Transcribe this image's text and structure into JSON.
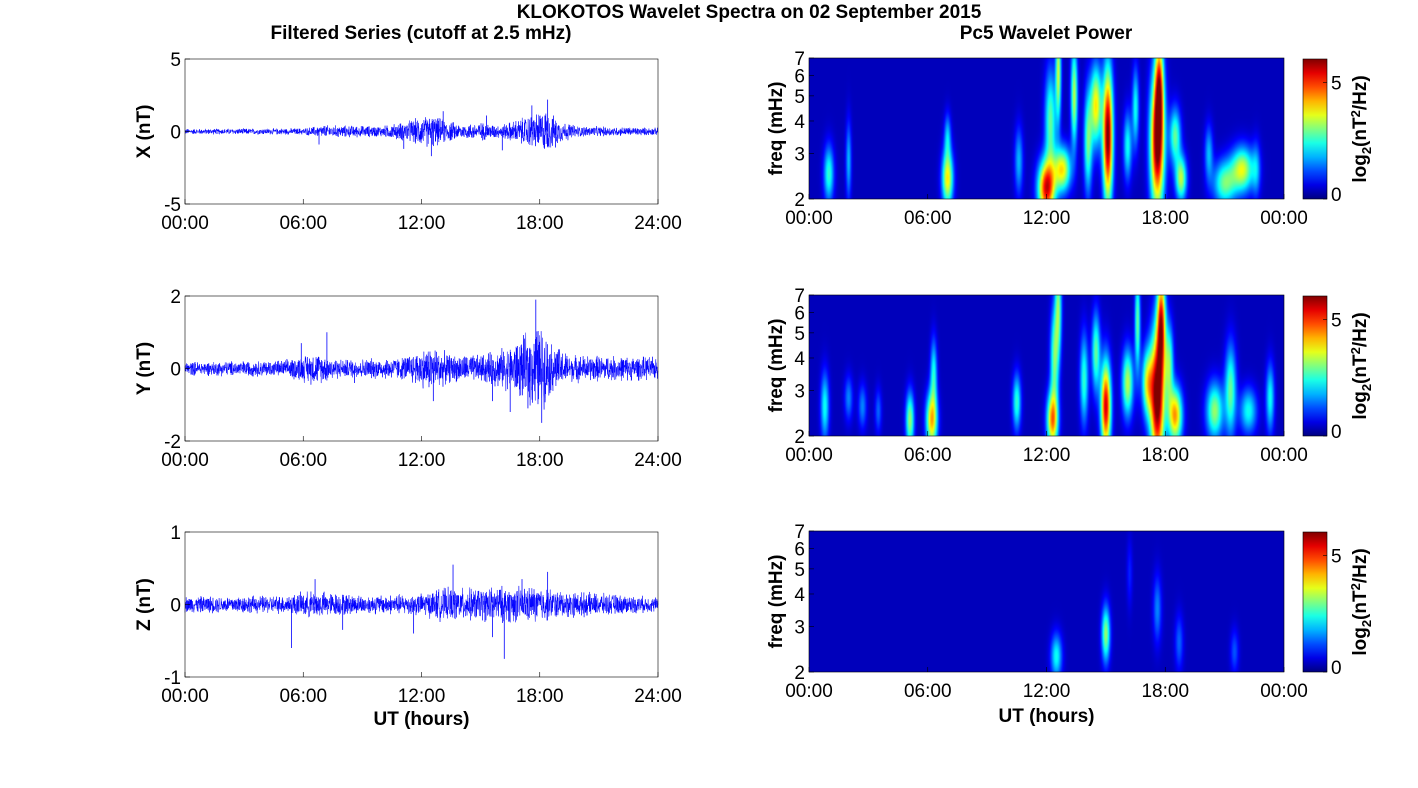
{
  "figure": {
    "title": "KLOKOTOS Wavelet Spectra on 02 September 2015",
    "left_title": "Filtered Series (cutoff at 2.5 mHz)",
    "right_title": "Pc5 Wavelet Power"
  },
  "colors": {
    "series": "#0000ff",
    "axis": "#000000",
    "background": "#ffffff"
  },
  "chart_data": [
    {
      "type": "line",
      "panel": "X",
      "ylabel": "X (nT)",
      "xlabel": "",
      "x_ticks": [
        "00:00",
        "06:00",
        "12:00",
        "18:00",
        "24:00"
      ],
      "xlim": [
        0,
        24
      ],
      "ylim": [
        -5,
        5
      ],
      "y_ticks": [
        "5",
        "0",
        "-5"
      ],
      "noise_envelope": [
        [
          0,
          0.15
        ],
        [
          6,
          0.18
        ],
        [
          7,
          0.35
        ],
        [
          10,
          0.3
        ],
        [
          11,
          0.5
        ],
        [
          12,
          0.8
        ],
        [
          12.5,
          0.9
        ],
        [
          13,
          0.7
        ],
        [
          14,
          0.4
        ],
        [
          15,
          0.5
        ],
        [
          16,
          0.35
        ],
        [
          17.5,
          0.9
        ],
        [
          18.3,
          1.2
        ],
        [
          19,
          0.6
        ],
        [
          20,
          0.3
        ],
        [
          24,
          0.2
        ]
      ],
      "spikes": [
        [
          6.8,
          -0.9
        ],
        [
          11.1,
          -1.2
        ],
        [
          12.5,
          -1.7
        ],
        [
          13.1,
          1.4
        ],
        [
          15.3,
          1.1
        ],
        [
          16.1,
          -1.3
        ],
        [
          17.6,
          1.8
        ],
        [
          18.4,
          2.2
        ],
        [
          18.8,
          -1.1
        ]
      ]
    },
    {
      "type": "line",
      "panel": "Y",
      "ylabel": "Y (nT)",
      "xlabel": "",
      "x_ticks": [
        "00:00",
        "06:00",
        "12:00",
        "18:00",
        "24:00"
      ],
      "xlim": [
        0,
        24
      ],
      "ylim": [
        -2,
        2
      ],
      "y_ticks": [
        "2",
        "0",
        "-2"
      ],
      "noise_envelope": [
        [
          0,
          0.15
        ],
        [
          5,
          0.18
        ],
        [
          6.5,
          0.35
        ],
        [
          8,
          0.2
        ],
        [
          11,
          0.25
        ],
        [
          12.5,
          0.5
        ],
        [
          13.5,
          0.3
        ],
        [
          15,
          0.3
        ],
        [
          16.5,
          0.5
        ],
        [
          17.5,
          0.8
        ],
        [
          18,
          1.0
        ],
        [
          18.5,
          0.6
        ],
        [
          19.5,
          0.3
        ],
        [
          24,
          0.25
        ]
      ],
      "spikes": [
        [
          5.9,
          0.7
        ],
        [
          7.2,
          1.0
        ],
        [
          8.6,
          -0.4
        ],
        [
          12.6,
          -0.9
        ],
        [
          15.6,
          -0.9
        ],
        [
          16.5,
          -1.2
        ],
        [
          17.8,
          1.9
        ],
        [
          18.1,
          -1.5
        ],
        [
          17.4,
          -1.1
        ]
      ]
    },
    {
      "type": "line",
      "panel": "Z",
      "ylabel": "Z (nT)",
      "xlabel": "UT (hours)",
      "x_ticks": [
        "00:00",
        "06:00",
        "12:00",
        "18:00",
        "24:00"
      ],
      "xlim": [
        0,
        24
      ],
      "ylim": [
        -1,
        1
      ],
      "y_ticks": [
        "1",
        "0",
        "-1"
      ],
      "noise_envelope": [
        [
          0,
          0.09
        ],
        [
          5,
          0.1
        ],
        [
          6.5,
          0.15
        ],
        [
          9,
          0.1
        ],
        [
          12,
          0.12
        ],
        [
          13,
          0.18
        ],
        [
          15,
          0.18
        ],
        [
          16,
          0.2
        ],
        [
          18,
          0.2
        ],
        [
          19,
          0.15
        ],
        [
          24,
          0.08
        ]
      ],
      "spikes": [
        [
          5.4,
          -0.6
        ],
        [
          6.6,
          0.35
        ],
        [
          8,
          -0.35
        ],
        [
          11.6,
          -0.4
        ],
        [
          13.6,
          0.55
        ],
        [
          15.6,
          -0.45
        ],
        [
          16.2,
          -0.75
        ],
        [
          18.4,
          0.45
        ],
        [
          17.1,
          0.35
        ]
      ]
    },
    {
      "type": "heatmap",
      "panel": "X",
      "ylabel": "freq (mHz)",
      "xlabel": "",
      "x_ticks": [
        "00:00",
        "06:00",
        "12:00",
        "18:00",
        "00:00"
      ],
      "y_ticks": [
        "2",
        "3",
        "4",
        "5",
        "6",
        "7"
      ],
      "ylim": [
        2,
        7
      ],
      "y_scale": "log",
      "colorbar_label": "log2(nT^2/Hz)",
      "colorbar_ticks": [
        "0",
        "5"
      ],
      "clim": [
        0,
        6
      ],
      "blobs": [
        [
          1,
          2.5,
          0.18,
          0.5,
          2.2
        ],
        [
          2,
          2.8,
          0.1,
          0.7,
          1.5
        ],
        [
          7,
          2.4,
          0.2,
          0.5,
          3.5
        ],
        [
          7,
          3.5,
          0.12,
          0.4,
          1.5
        ],
        [
          10.6,
          2.8,
          0.15,
          0.6,
          1.5
        ],
        [
          12,
          2.2,
          0.3,
          0.5,
          5.0
        ],
        [
          12.2,
          4,
          0.2,
          0.9,
          2.5
        ],
        [
          12.8,
          2.6,
          0.3,
          0.4,
          3.5
        ],
        [
          12.6,
          6.2,
          0.1,
          0.9,
          3.0
        ],
        [
          13.4,
          5,
          0.12,
          0.9,
          3.0
        ],
        [
          14.1,
          3.3,
          0.15,
          0.9,
          2.5
        ],
        [
          14.5,
          4.6,
          0.2,
          0.7,
          3.5
        ],
        [
          15.1,
          3.5,
          0.18,
          1.2,
          5.8
        ],
        [
          16.1,
          3.2,
          0.15,
          0.6,
          2.0
        ],
        [
          16.5,
          4.5,
          0.12,
          0.7,
          2.0
        ],
        [
          17.6,
          3.3,
          0.25,
          1.2,
          5.8
        ],
        [
          17.7,
          5.5,
          0.15,
          0.9,
          3.5
        ],
        [
          18.5,
          3.5,
          0.2,
          0.5,
          2.5
        ],
        [
          18.8,
          2.4,
          0.2,
          0.4,
          3.0
        ],
        [
          20.2,
          3.0,
          0.15,
          0.5,
          1.5
        ],
        [
          21,
          2.3,
          0.4,
          0.4,
          2.5
        ],
        [
          21.9,
          2.6,
          0.4,
          0.4,
          3.2
        ],
        [
          22.6,
          2.6,
          0.15,
          0.5,
          1.2
        ]
      ]
    },
    {
      "type": "heatmap",
      "panel": "Y",
      "ylabel": "freq (mHz)",
      "xlabel": "",
      "x_ticks": [
        "00:00",
        "06:00",
        "12:00",
        "18:00",
        "00:00"
      ],
      "y_ticks": [
        "2",
        "3",
        "4",
        "5",
        "6",
        "7"
      ],
      "ylim": [
        2,
        7
      ],
      "y_scale": "log",
      "colorbar_label": "log2(nT^2/Hz)",
      "colorbar_ticks": [
        "0",
        "5"
      ],
      "clim": [
        0,
        6
      ],
      "blobs": [
        [
          0.8,
          2.6,
          0.15,
          0.6,
          2.0
        ],
        [
          2,
          2.8,
          0.15,
          0.4,
          1.2
        ],
        [
          2.7,
          2.6,
          0.15,
          0.4,
          1.2
        ],
        [
          3.5,
          2.5,
          0.12,
          0.4,
          1.0
        ],
        [
          5.1,
          2.3,
          0.15,
          0.5,
          2.8
        ],
        [
          6.2,
          2.3,
          0.2,
          0.5,
          3.8
        ],
        [
          6.3,
          3.5,
          0.12,
          0.6,
          2.0
        ],
        [
          10.5,
          2.7,
          0.15,
          0.5,
          2.2
        ],
        [
          12.3,
          2.3,
          0.2,
          0.5,
          4.0
        ],
        [
          12.4,
          4,
          0.15,
          0.9,
          2.5
        ],
        [
          12.6,
          6.3,
          0.12,
          0.9,
          2.5
        ],
        [
          13.9,
          3.3,
          0.15,
          0.8,
          2.2
        ],
        [
          14.5,
          4.2,
          0.15,
          0.7,
          2.5
        ],
        [
          15,
          2.6,
          0.18,
          0.8,
          5.2
        ],
        [
          16.1,
          3.2,
          0.2,
          0.6,
          3.0
        ],
        [
          16.6,
          5.5,
          0.1,
          0.9,
          2.5
        ],
        [
          17.1,
          3.2,
          0.2,
          0.6,
          3.0
        ],
        [
          17.6,
          2.8,
          0.25,
          1.2,
          6.0
        ],
        [
          17.8,
          5.5,
          0.15,
          0.9,
          4.5
        ],
        [
          18.5,
          2.4,
          0.25,
          0.5,
          4.0
        ],
        [
          18.2,
          3.8,
          0.15,
          0.7,
          2.5
        ],
        [
          20.5,
          2.5,
          0.3,
          0.5,
          2.8
        ],
        [
          21.3,
          3.0,
          0.2,
          0.8,
          2.5
        ],
        [
          22.2,
          2.5,
          0.3,
          0.4,
          2.0
        ],
        [
          23.3,
          2.8,
          0.15,
          0.6,
          2.0
        ]
      ]
    },
    {
      "type": "heatmap",
      "panel": "Z",
      "ylabel": "freq (mHz)",
      "xlabel": "UT (hours)",
      "x_ticks": [
        "00:00",
        "06:00",
        "12:00",
        "18:00",
        "00:00"
      ],
      "y_ticks": [
        "2",
        "3",
        "4",
        "5",
        "6",
        "7"
      ],
      "ylim": [
        2,
        7
      ],
      "y_scale": "log",
      "colorbar_label": "log2(nT^2/Hz)",
      "colorbar_ticks": [
        "0",
        "5"
      ],
      "clim": [
        0,
        6
      ],
      "blobs": [
        [
          12.5,
          2.3,
          0.2,
          0.4,
          2.0
        ],
        [
          15,
          2.8,
          0.15,
          0.5,
          2.8
        ],
        [
          17.6,
          3.5,
          0.15,
          0.6,
          1.2
        ],
        [
          18.7,
          2.6,
          0.15,
          0.5,
          1.0
        ],
        [
          21.5,
          2.4,
          0.15,
          0.4,
          0.9
        ],
        [
          16.2,
          4.8,
          0.1,
          0.6,
          0.6
        ]
      ]
    }
  ]
}
